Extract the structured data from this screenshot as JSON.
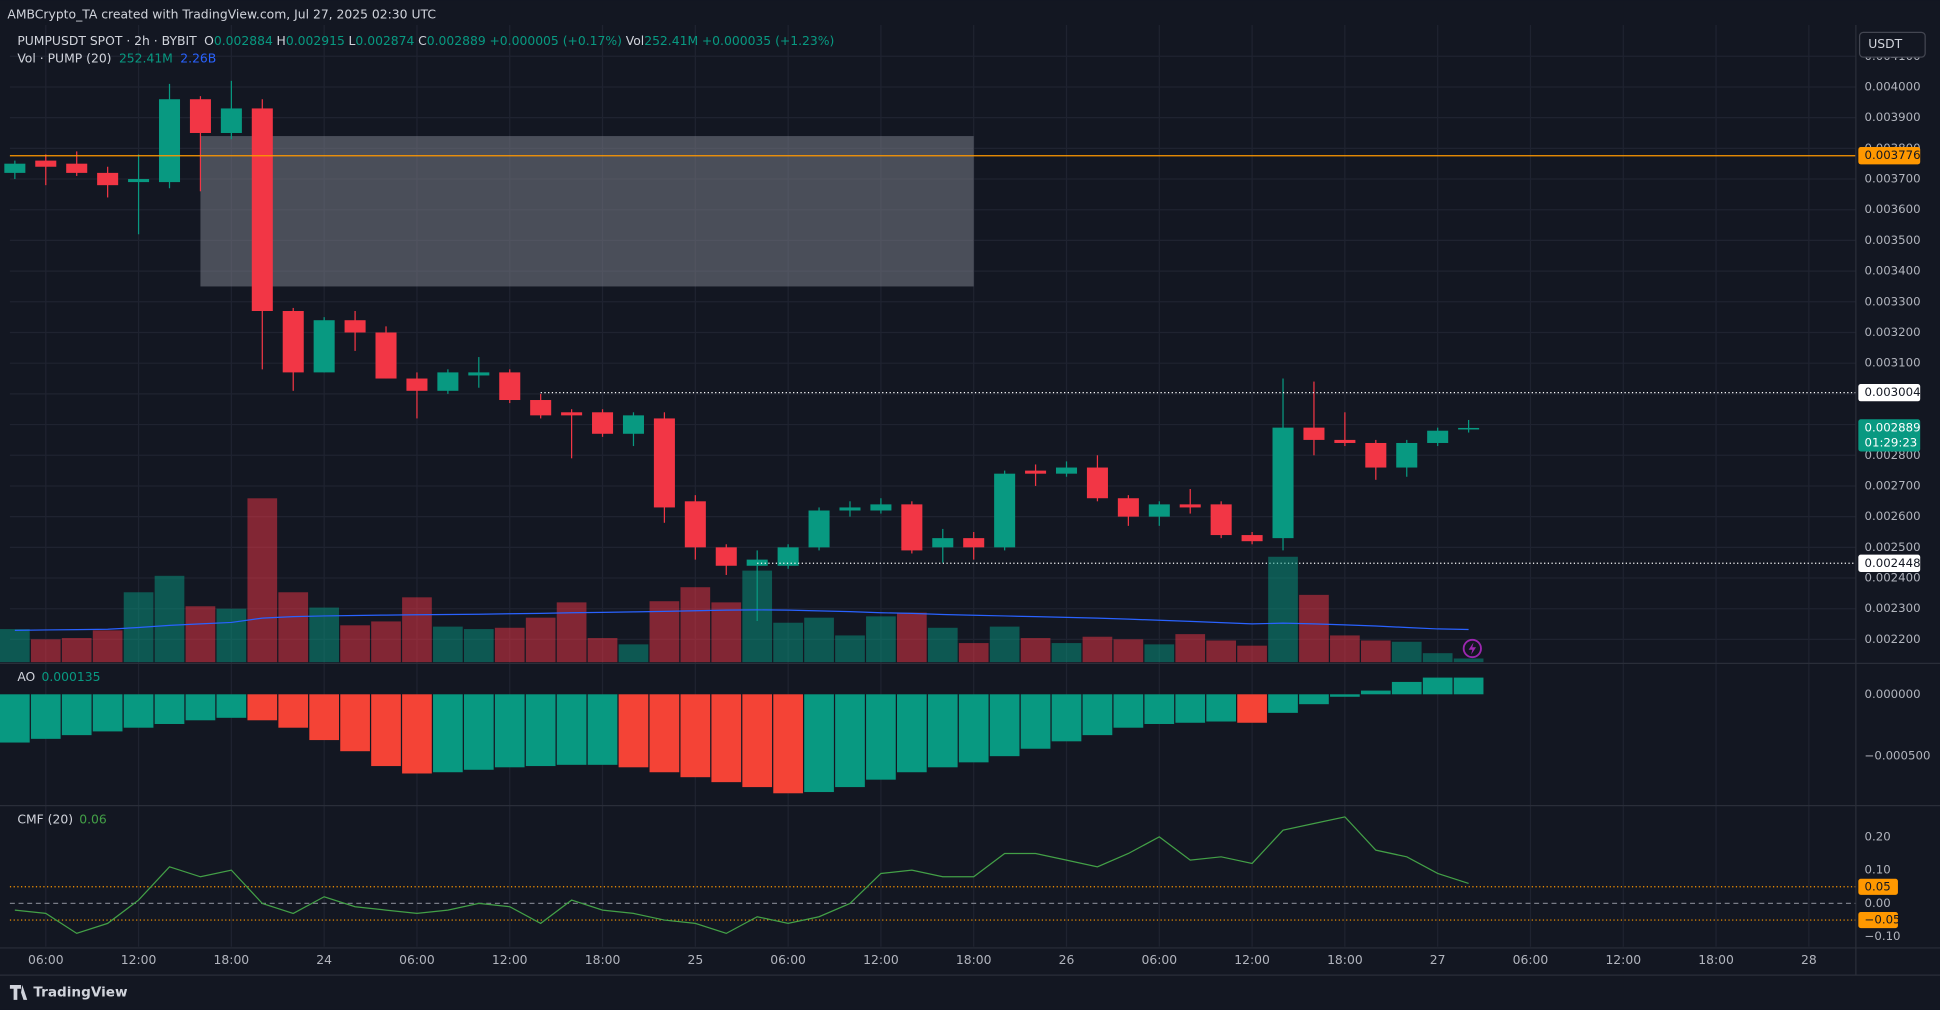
{
  "header": {
    "attribution": "AMBCrypto_TA created with TradingView.com, Jul 27, 2025 02:30 UTC",
    "symbol": "PUMPUSDT SPOT · 2h · BYBIT",
    "ohlc": [
      [
        "O",
        "0.002884"
      ],
      [
        "H",
        "0.002915"
      ],
      [
        "L",
        "0.002874"
      ],
      [
        "C",
        "0.002889"
      ]
    ],
    "change": "+0.000005 (+0.17%)",
    "vol_key": "Vol",
    "vol_value": "252.41M",
    "vol_change": "+0.000035 (+1.23%)"
  },
  "currency": "USDT",
  "footer": "TradingView",
  "chart_data": [
    {
      "type": "candlestick",
      "x": [
        4,
        6,
        8,
        10,
        12,
        14,
        16,
        18,
        20,
        22,
        24,
        26,
        28,
        30,
        32,
        34,
        36,
        38,
        40,
        42,
        44,
        46,
        48,
        50,
        52,
        54,
        56,
        58,
        60,
        62,
        64,
        66,
        68,
        70,
        72,
        74,
        76,
        78,
        80,
        82,
        84,
        86,
        88,
        90,
        92,
        94,
        96,
        98
      ],
      "open": [
        0.00372,
        0.00376,
        0.00375,
        0.00372,
        0.00369,
        0.00369,
        0.00396,
        0.00385,
        0.00393,
        0.00327,
        0.00307,
        0.00324,
        0.0032,
        0.00305,
        0.00301,
        0.00306,
        0.00307,
        0.00298,
        0.00294,
        0.00294,
        0.00287,
        0.00292,
        0.00265,
        0.0025,
        0.00244,
        0.00244,
        0.0025,
        0.00262,
        0.00262,
        0.00264,
        0.0025,
        0.00253,
        0.0025,
        0.00275,
        0.00274,
        0.00276,
        0.00266,
        0.0026,
        0.00264,
        0.00264,
        0.00254,
        0.00253,
        0.00289,
        0.00285,
        0.00284,
        0.00276,
        0.00284,
        0.002884
      ],
      "high": [
        0.00376,
        0.00378,
        0.00379,
        0.00374,
        0.00378,
        0.00401,
        0.00397,
        0.00402,
        0.00396,
        0.00328,
        0.00325,
        0.00327,
        0.00322,
        0.00307,
        0.00308,
        0.00312,
        0.00308,
        0.003,
        0.00295,
        0.00295,
        0.00294,
        0.00294,
        0.00267,
        0.00251,
        0.00249,
        0.00251,
        0.00263,
        0.00265,
        0.00266,
        0.00265,
        0.00256,
        0.00255,
        0.00275,
        0.00277,
        0.00278,
        0.0028,
        0.00267,
        0.00265,
        0.00269,
        0.00265,
        0.00255,
        0.00305,
        0.00304,
        0.00294,
        0.00285,
        0.00285,
        0.00289,
        0.002915
      ],
      "low": [
        0.0037,
        0.00368,
        0.00371,
        0.00364,
        0.00352,
        0.00367,
        0.00366,
        0.00383,
        0.00308,
        0.00301,
        0.00307,
        0.00314,
        0.00305,
        0.00292,
        0.003,
        0.00302,
        0.00297,
        0.00292,
        0.00279,
        0.00286,
        0.00283,
        0.00258,
        0.00246,
        0.00241,
        0.00226,
        0.00243,
        0.00249,
        0.0026,
        0.00261,
        0.00248,
        0.00245,
        0.00246,
        0.00249,
        0.0027,
        0.00273,
        0.00265,
        0.00257,
        0.00257,
        0.00261,
        0.00253,
        0.00251,
        0.00249,
        0.0028,
        0.00283,
        0.00272,
        0.00273,
        0.00283,
        0.002874
      ],
      "close": [
        0.00375,
        0.00374,
        0.00372,
        0.00368,
        0.0037,
        0.00396,
        0.00385,
        0.00393,
        0.00327,
        0.00307,
        0.00324,
        0.0032,
        0.00305,
        0.00301,
        0.00307,
        0.00307,
        0.00298,
        0.00293,
        0.00293,
        0.00287,
        0.00293,
        0.00263,
        0.0025,
        0.00244,
        0.00246,
        0.0025,
        0.00262,
        0.00263,
        0.00264,
        0.00249,
        0.00253,
        0.0025,
        0.00274,
        0.00274,
        0.00276,
        0.00266,
        0.0026,
        0.00264,
        0.00263,
        0.00254,
        0.00252,
        0.00289,
        0.00285,
        0.00284,
        0.00276,
        0.00284,
        0.00288,
        0.002889
      ],
      "up_color": "#089981",
      "down_color": "#f23645",
      "xlim": [
        3.68,
        123.04
      ],
      "xticks": [
        {
          "value": 6,
          "label": "06:00"
        },
        {
          "value": 12,
          "label": "12:00"
        },
        {
          "value": 18,
          "label": "18:00"
        },
        24,
        {
          "value": 30,
          "label": "06:00"
        },
        {
          "value": 36,
          "label": "12:00"
        },
        {
          "value": 42,
          "label": "18:00"
        },
        {
          "value": 48,
          "label": "25"
        },
        {
          "value": 54,
          "label": "06:00"
        },
        {
          "value": 60,
          "label": "12:00"
        },
        {
          "value": 66,
          "label": "18:00"
        },
        {
          "value": 72,
          "label": "26"
        },
        {
          "value": 78,
          "label": "06:00"
        },
        {
          "value": 84,
          "label": "12:00"
        },
        {
          "value": 90,
          "label": "18:00"
        },
        {
          "value": 96,
          "label": "27"
        },
        {
          "value": 102,
          "label": "06:00"
        },
        {
          "value": 108,
          "label": "12:00"
        },
        {
          "value": 114,
          "label": "18:00"
        },
        {
          "value": 120,
          "label": "28"
        }
      ],
      "ylim": [
        0.002126,
        0.004202
      ],
      "yticks": [
        {
          "value": 0.0041,
          "label": "0.004100"
        },
        {
          "value": 0.004,
          "label": "0.004000"
        },
        {
          "value": 0.0039,
          "label": "0.003900"
        },
        {
          "value": 0.0038,
          "label": "0.003800"
        },
        {
          "value": 0.0037,
          "label": "0.003700"
        },
        {
          "value": 0.0036,
          "label": "0.003600"
        },
        {
          "value": 0.0035,
          "label": "0.003500"
        },
        {
          "value": 0.0034,
          "label": "0.003400"
        },
        {
          "value": 0.0033,
          "label": "0.003300"
        },
        {
          "value": 0.0032,
          "label": "0.003200"
        },
        {
          "value": 0.0031,
          "label": "0.003100"
        },
        {
          "value": 0.003,
          "label": "0.003000"
        },
        {
          "value": 0.0029,
          "label": "0.002900"
        },
        {
          "value": 0.0028,
          "label": "0.002800"
        },
        {
          "value": 0.0027,
          "label": "0.002700"
        },
        {
          "value": 0.0026,
          "label": "0.002600"
        },
        {
          "value": 0.0025,
          "label": "0.002500"
        },
        {
          "value": 0.0024,
          "label": "0.002400"
        },
        {
          "value": 0.0023,
          "label": "0.002300"
        },
        {
          "value": 0.0022,
          "label": "0.002200"
        }
      ],
      "grid": true,
      "levels": [
        {
          "value": 0.003776,
          "color": "#ff9800",
          "style": "solid",
          "start": 3.68
        },
        {
          "value": 0.003004,
          "color": "#ffffff",
          "style": "dotted",
          "start": 38
        },
        {
          "value": 0.002448,
          "color": "#ffffff",
          "style": "dotted",
          "start": 52
        }
      ],
      "zone": {
        "x": [
          16,
          66
        ],
        "y": [
          0.00335,
          0.00384
        ],
        "color": "#787b86"
      },
      "countdown": "01:29:23"
    },
    {
      "type": "volume",
      "title": "Vol · PUMP (20)",
      "current": "252.41M",
      "ma_current": "2.26B",
      "values": [
        2290,
        1580,
        1670,
        2200,
        4840,
        5980,
        3870,
        3700,
        11350,
        4840,
        3780,
        2550,
        2820,
        4490,
        2460,
        2290,
        2380,
        3080,
        4140,
        1670,
        1230,
        4220,
        5190,
        4140,
        6340,
        2730,
        3080,
        1850,
        3170,
        3430,
        2380,
        1320,
        2460,
        1670,
        1320,
        1760,
        1580,
        1230,
        1940,
        1500,
        1140,
        7300,
        4660,
        1850,
        1500,
        1410,
        620,
        252.41
      ],
      "ma": [
        2200,
        2230,
        2250,
        2280,
        2400,
        2550,
        2650,
        2750,
        3050,
        3150,
        3200,
        3230,
        3260,
        3280,
        3300,
        3320,
        3350,
        3380,
        3420,
        3450,
        3480,
        3520,
        3560,
        3600,
        3620,
        3600,
        3550,
        3500,
        3420,
        3380,
        3300,
        3250,
        3200,
        3150,
        3100,
        3050,
        2980,
        2900,
        2820,
        2740,
        2650,
        2700,
        2650,
        2580,
        2500,
        2400,
        2300,
        2260
      ],
      "ma_color": "#2962ff",
      "ylim": [
        0,
        12000
      ]
    },
    {
      "type": "ao",
      "title": "AO",
      "values": [
        -0.00039,
        -0.00036,
        -0.00033,
        -0.0003,
        -0.00027,
        -0.00024,
        -0.00021,
        -0.00019,
        -0.00021,
        -0.00027,
        -0.00037,
        -0.00046,
        -0.00058,
        -0.00064,
        -0.00063,
        -0.00061,
        -0.00059,
        -0.00058,
        -0.00057,
        -0.00057,
        -0.00059,
        -0.00063,
        -0.00067,
        -0.00071,
        -0.00075,
        -0.0008,
        -0.00079,
        -0.00075,
        -0.00069,
        -0.00063,
        -0.00059,
        -0.00055,
        -0.0005,
        -0.00044,
        -0.00038,
        -0.00033,
        -0.00027,
        -0.00024,
        -0.00023,
        -0.00022,
        -0.00023,
        -0.00015,
        -8e-05,
        -2e-05,
        3e-05,
        0.0001,
        0.000135,
        0.000135
      ],
      "up_color": "#089981",
      "down_color": "#f44336",
      "ylim": [
        -0.00089,
        0.00024
      ],
      "yticks": [
        {
          "value": 0,
          "label": "0.000000"
        },
        {
          "value": -0.0005,
          "label": "−0.000500"
        }
      ]
    },
    {
      "type": "cmf",
      "title": "CMF (20)",
      "values": [
        -0.02,
        -0.03,
        -0.09,
        -0.06,
        0.01,
        0.11,
        0.08,
        0.1,
        0,
        -0.03,
        0.02,
        -0.01,
        -0.02,
        -0.03,
        -0.02,
        0,
        -0.01,
        -0.06,
        0.01,
        -0.02,
        -0.03,
        -0.05,
        -0.06,
        -0.09,
        -0.04,
        -0.06,
        -0.04,
        0,
        0.09,
        0.1,
        0.08,
        0.08,
        0.15,
        0.15,
        0.13,
        0.11,
        0.15,
        0.2,
        0.13,
        0.14,
        0.12,
        0.22,
        0.24,
        0.26,
        0.16,
        0.14,
        0.09,
        0.06
      ],
      "color": "#43a047",
      "ylim": [
        -0.13,
        0.29
      ],
      "yticks": [
        {
          "value": 0.2,
          "label": "0.20"
        },
        {
          "value": 0.1,
          "label": "0.10"
        },
        {
          "value": 0,
          "label": "0.00"
        },
        {
          "value": -0.1,
          "label": "−0.10"
        }
      ],
      "bands": [
        0.05,
        {
          "value": -0.05,
          "label": "−0.05"
        }
      ],
      "band_color": "#ff9800"
    }
  ]
}
